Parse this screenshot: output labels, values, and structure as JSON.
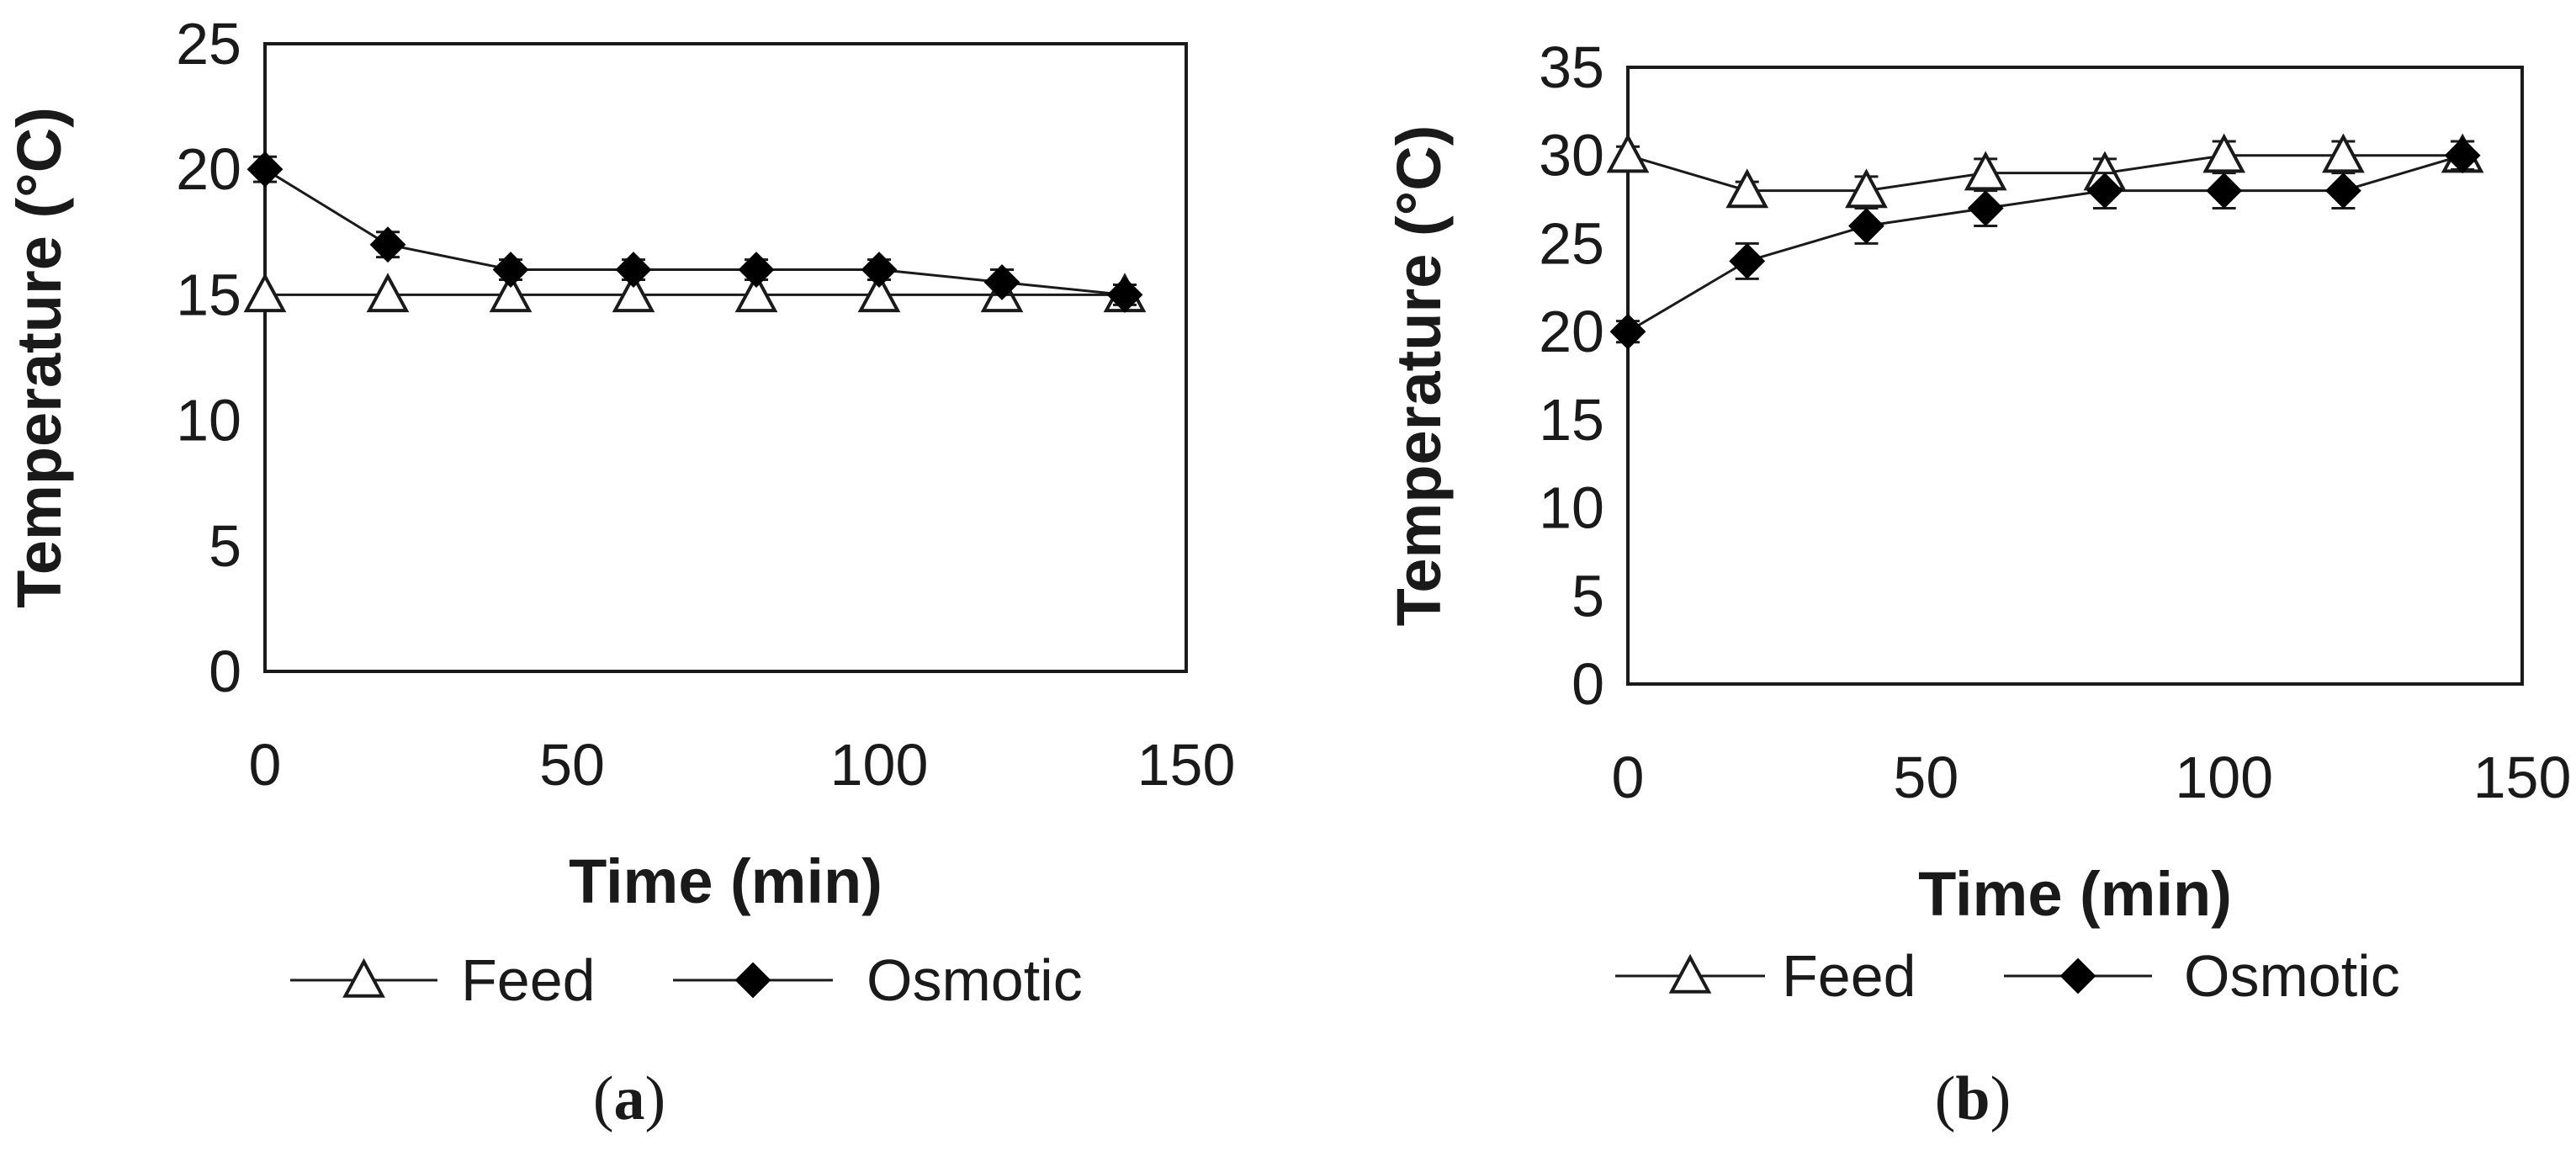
{
  "chart_data": [
    {
      "panel": "a",
      "type": "line",
      "caption_open": "(",
      "caption_letter": "a",
      "caption_close": ")",
      "xlabel": "Time (min)",
      "ylabel": "Temperature  (°C)",
      "xlim": [
        0,
        150
      ],
      "ylim": [
        0,
        25
      ],
      "xticks": [
        0,
        50,
        100,
        150
      ],
      "yticks": [
        0,
        5,
        10,
        15,
        20,
        25
      ],
      "grid": false,
      "legend_position": "bottom",
      "series": [
        {
          "name": "Feed",
          "marker": "open-triangle",
          "x": [
            0,
            20,
            40,
            60,
            80,
            100,
            120,
            140
          ],
          "values": [
            15,
            15,
            15,
            15,
            15,
            15,
            15,
            15
          ],
          "error": [
            0,
            0,
            0,
            0,
            0,
            0,
            0,
            0
          ]
        },
        {
          "name": "Osmotic",
          "marker": "filled-diamond",
          "x": [
            0,
            20,
            40,
            60,
            80,
            100,
            120,
            140
          ],
          "values": [
            20,
            17,
            16,
            16,
            16,
            16,
            15.5,
            15
          ],
          "error": [
            0.5,
            0.5,
            0.4,
            0.4,
            0.4,
            0.4,
            0.5,
            0.4
          ]
        }
      ]
    },
    {
      "panel": "b",
      "type": "line",
      "caption_open": "(",
      "caption_letter": "b",
      "caption_close": ")",
      "xlabel": "Time (min)",
      "ylabel": "Temperature  (°C)",
      "xlim": [
        0,
        150
      ],
      "ylim": [
        0,
        35
      ],
      "xticks": [
        0,
        50,
        100,
        150
      ],
      "yticks": [
        0,
        5,
        10,
        15,
        20,
        25,
        30,
        35
      ],
      "grid": false,
      "legend_position": "bottom",
      "series": [
        {
          "name": "Feed",
          "marker": "open-triangle",
          "x": [
            0,
            20,
            40,
            60,
            80,
            100,
            120,
            140
          ],
          "values": [
            30,
            28,
            28,
            29,
            29,
            30,
            30,
            30
          ],
          "error": [
            0.5,
            0.5,
            0.8,
            0.8,
            0.8,
            0.8,
            0.8,
            0.8
          ]
        },
        {
          "name": "Osmotic",
          "marker": "filled-diamond",
          "x": [
            0,
            20,
            40,
            60,
            80,
            100,
            120,
            140
          ],
          "values": [
            20,
            24,
            26,
            27,
            28,
            28,
            28,
            30
          ],
          "error": [
            0.6,
            1,
            1,
            1,
            1,
            1,
            1,
            0.8
          ]
        }
      ]
    }
  ]
}
